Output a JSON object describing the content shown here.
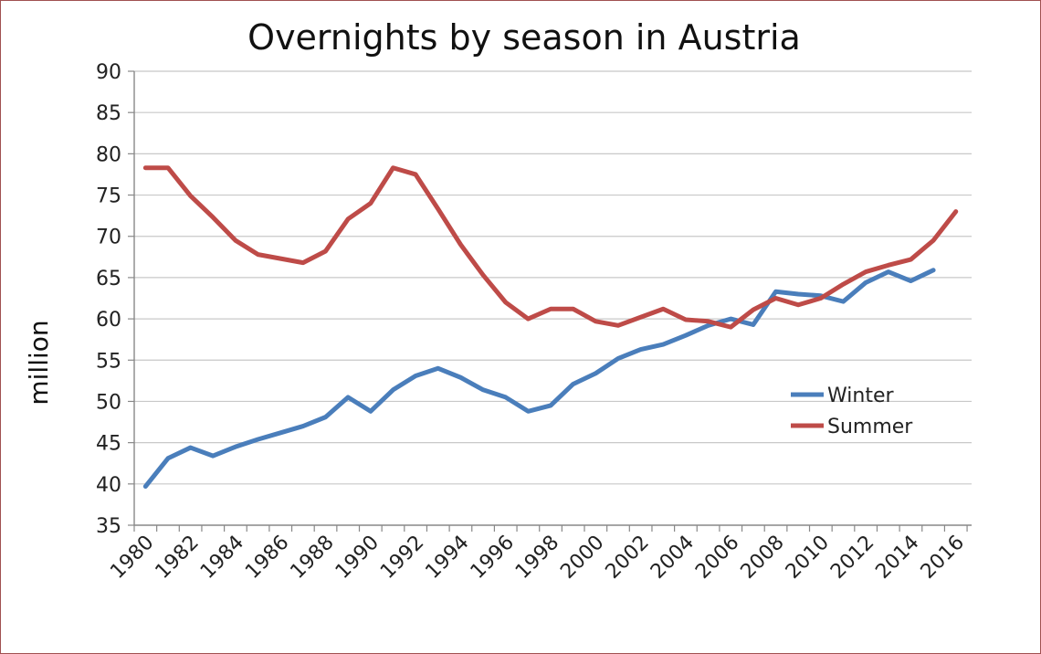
{
  "chart_data": {
    "type": "line",
    "title": "Overnights by season in Austria",
    "xlabel": "",
    "ylabel": "million",
    "ylim": [
      35,
      90
    ],
    "yticks": [
      35,
      40,
      45,
      50,
      55,
      60,
      65,
      70,
      75,
      80,
      85,
      90
    ],
    "xticks": [
      1980,
      1982,
      1984,
      1986,
      1988,
      1990,
      1992,
      1994,
      1996,
      1998,
      2000,
      2002,
      2004,
      2006,
      2008,
      2010,
      2012,
      2014,
      2016
    ],
    "grid": true,
    "legend_position": "right",
    "series": [
      {
        "name": "Winter",
        "color": "#4a7ebb",
        "x": [
          1980,
          1981,
          1982,
          1983,
          1984,
          1985,
          1986,
          1987,
          1988,
          1989,
          1990,
          1991,
          1992,
          1993,
          1994,
          1995,
          1996,
          1997,
          1998,
          1999,
          2000,
          2001,
          2002,
          2003,
          2004,
          2005,
          2006,
          2007,
          2008,
          2009,
          2010,
          2011,
          2012,
          2013,
          2014,
          2015
        ],
        "values": [
          39.7,
          43.1,
          44.4,
          43.4,
          44.5,
          45.4,
          46.2,
          47.0,
          48.1,
          50.5,
          48.8,
          51.4,
          53.1,
          54.0,
          52.9,
          51.4,
          50.5,
          48.8,
          49.5,
          52.1,
          53.4,
          55.2,
          56.3,
          56.9,
          58.0,
          59.2,
          60.0,
          59.3,
          63.3,
          63.0,
          62.8,
          62.1,
          64.4,
          65.7,
          64.6,
          65.9
        ]
      },
      {
        "name": "Summer",
        "color": "#be4b48",
        "x": [
          1980,
          1981,
          1982,
          1983,
          1984,
          1985,
          1986,
          1987,
          1988,
          1989,
          1990,
          1991,
          1992,
          1993,
          1994,
          1995,
          1996,
          1997,
          1998,
          1999,
          2000,
          2001,
          2002,
          2003,
          2004,
          2005,
          2006,
          2007,
          2008,
          2009,
          2010,
          2011,
          2012,
          2013,
          2014,
          2015,
          2016
        ],
        "values": [
          78.3,
          78.3,
          74.9,
          72.3,
          69.5,
          67.8,
          67.3,
          66.8,
          68.2,
          72.1,
          74.0,
          78.3,
          77.5,
          73.3,
          69.0,
          65.3,
          62.0,
          60.0,
          61.2,
          61.2,
          59.7,
          59.2,
          60.2,
          61.2,
          59.9,
          59.7,
          59.0,
          61.1,
          62.5,
          61.7,
          62.5,
          64.2,
          65.7,
          66.5,
          67.2,
          69.5,
          73.0
        ]
      }
    ]
  }
}
